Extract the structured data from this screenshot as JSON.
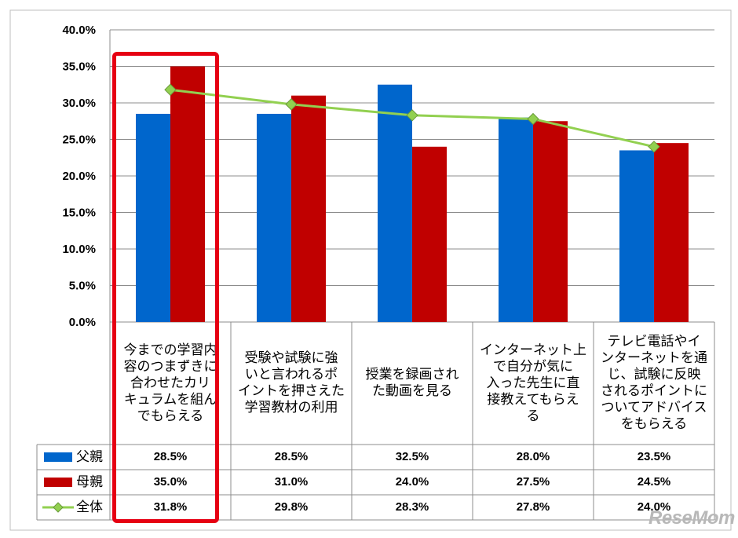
{
  "chart_data": {
    "type": "bar",
    "categories": [
      "今までの学習内容のつまずきに合わせたカリキュラムを組んでもらえる",
      "受験や試験に強いと言われるポイントを押さえた学習教材の利用",
      "授業を録画された動画を見る",
      "インターネット上で自分が気に入った先生に直接教えてもらえる",
      "テレビ電話やインターネットを通じ、試験に反映されるポイントについてアドバイスをもらえる"
    ],
    "category_lines": [
      [
        "今までの学習内",
        "容のつまずきに",
        "合わせたカリ",
        "キュラムを組ん",
        "でもらえる"
      ],
      [
        "受験や試験に強",
        "いと言われるポ",
        "イントを押さえた",
        "学習教材の利用"
      ],
      [
        "授業を録画され",
        "た動画を見る"
      ],
      [
        "インターネット上",
        "で自分が気に",
        "入った先生に直",
        "接教えてもらえ",
        "る"
      ],
      [
        "テレビ電話やイ",
        "ンターネットを通",
        "じ、試験に反映",
        "されるポイントに",
        "ついてアドバイス",
        "をもらえる"
      ]
    ],
    "series": [
      {
        "name": "父親",
        "kind": "bar",
        "color": "#0066cc",
        "values": [
          28.5,
          28.5,
          32.5,
          28.0,
          23.5
        ],
        "labels": [
          "28.5%",
          "28.5%",
          "32.5%",
          "28.0%",
          "23.5%"
        ]
      },
      {
        "name": "母親",
        "kind": "bar",
        "color": "#c00000",
        "values": [
          35.0,
          31.0,
          24.0,
          27.5,
          24.5
        ],
        "labels": [
          "35.0%",
          "31.0%",
          "24.0%",
          "27.5%",
          "24.5%"
        ]
      },
      {
        "name": "全体",
        "kind": "line",
        "color": "#92d050",
        "values": [
          31.8,
          29.8,
          28.3,
          27.8,
          24.0
        ],
        "labels": [
          "31.8%",
          "29.8%",
          "28.3%",
          "27.8%",
          "24.0%"
        ]
      }
    ],
    "ylim": [
      0,
      40
    ],
    "yticks": [
      "0.0%",
      "5.0%",
      "10.0%",
      "15.0%",
      "20.0%",
      "25.0%",
      "30.0%",
      "35.0%",
      "40.0%"
    ],
    "grid": true,
    "legend": "data-table",
    "highlight_category": 0
  },
  "watermark": "ReseMom"
}
